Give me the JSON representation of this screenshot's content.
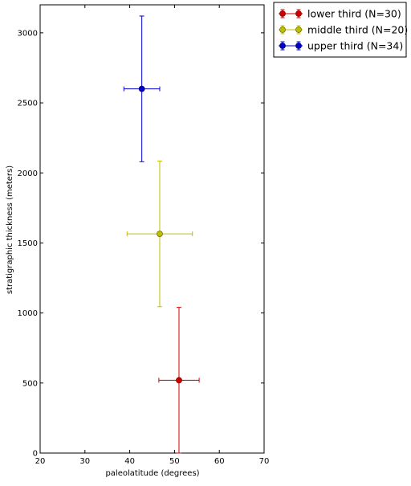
{
  "chart_data": {
    "type": "scatter",
    "title": "",
    "xlabel": "paleolatitude (degrees)",
    "ylabel": "stratigraphic thickness (meters)",
    "xlim": [
      20,
      70
    ],
    "ylim": [
      0,
      3200
    ],
    "xticks": [
      20,
      30,
      40,
      50,
      60,
      70
    ],
    "yticks": [
      0,
      500,
      1000,
      1500,
      2000,
      2500,
      3000
    ],
    "grid": false,
    "legend_position": "outside-top-right",
    "series": [
      {
        "name": "lower third (N=30)",
        "color": "#cc0000",
        "edge_color": "#8b0000",
        "x": 51.0,
        "y": 520,
        "xerr": 4.5,
        "yerr": 520
      },
      {
        "name": "middle third (N=20)",
        "color": "#bfbf00",
        "edge_color": "#6b6b00",
        "x": 46.7,
        "y": 1565,
        "xerr": 7.3,
        "yerr": 520
      },
      {
        "name": "upper third (N=34)",
        "color": "#0000cc",
        "edge_color": "#00006b",
        "x": 42.7,
        "y": 2600,
        "xerr": 4.0,
        "yerr": 520
      }
    ]
  }
}
